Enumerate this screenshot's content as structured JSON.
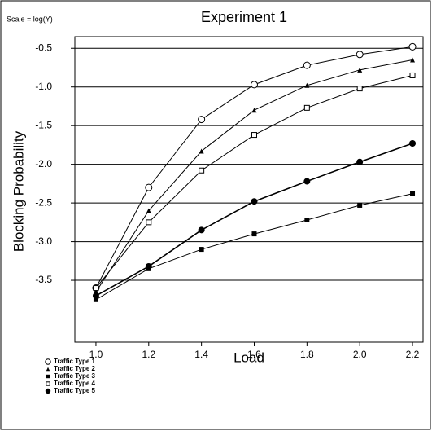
{
  "chart_data": {
    "type": "line",
    "title": "Experiment 1",
    "annotation": "Scale = log(Y)",
    "xlabel": "Load",
    "ylabel": "Blocking Probability",
    "x": [
      1.0,
      1.2,
      1.4,
      1.6,
      1.8,
      2.0,
      2.2
    ],
    "xlim": [
      0.92,
      2.24
    ],
    "xticks": [
      {
        "value": 1.0,
        "label": "1.0"
      },
      1.2,
      1.4,
      1.6,
      1.8,
      {
        "value": 2.0,
        "label": "2.0"
      },
      2.2
    ],
    "ylim": [
      -4.3,
      -0.35
    ],
    "yticks": [
      -0.5,
      {
        "value": -1.0,
        "label": "-1.0"
      },
      -1.5,
      {
        "value": -2.0,
        "label": "-2.0"
      },
      -2.5,
      {
        "value": -3.0,
        "label": "-3.0"
      },
      -3.5
    ],
    "grid": true,
    "legend": "lower left",
    "series": [
      {
        "name": "Traffic Type 1",
        "color": "#000000",
        "marker": "open-circle",
        "values": [
          -3.6,
          -2.3,
          -1.42,
          -0.97,
          -0.72,
          -0.58,
          -0.48
        ]
      },
      {
        "name": "Traffic Type 2",
        "color": "#000000",
        "marker": "triangle",
        "values": [
          -3.65,
          -2.6,
          -1.83,
          -1.3,
          -0.98,
          -0.78,
          -0.65
        ]
      },
      {
        "name": "Traffic Type 3",
        "color": "#000000",
        "marker": "filled-square",
        "values": [
          -3.75,
          -3.35,
          -3.1,
          -2.9,
          -2.72,
          -2.53,
          -2.38
        ]
      },
      {
        "name": "Traffic Type 4",
        "color": "#000000",
        "marker": "open-square",
        "values": [
          -3.6,
          -2.75,
          -2.08,
          -1.62,
          -1.27,
          -1.02,
          -0.85
        ]
      },
      {
        "name": "Traffic Type 5",
        "color": "#000000",
        "marker": "filled-circle",
        "values": [
          -3.7,
          -3.32,
          -2.85,
          -2.48,
          -2.22,
          -1.97,
          -1.73
        ]
      }
    ]
  }
}
